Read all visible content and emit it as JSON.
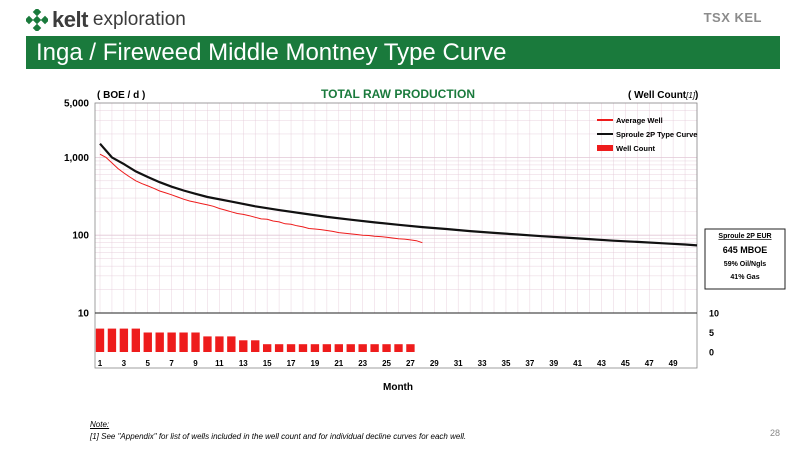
{
  "header": {
    "brand": "kelt",
    "brand_suffix": "exploration",
    "exchange_ticker": "TSX KEL",
    "title": "Inga / Fireweed Middle Montney Type Curve"
  },
  "colors": {
    "banner": "#1a7a3c",
    "average_well": "#ee1c1c",
    "type_curve": "#111111",
    "well_count": "#ee1c1c",
    "grid": "#e2c7d6"
  },
  "chart_data": {
    "type": "line",
    "title": "TOTAL RAW PRODUCTION",
    "ylabel_left": "( BOE / d )",
    "ylabel_right": "( Well Count",
    "ylabel_right_note": "[1]",
    "ylabel_right_close": ")",
    "xlabel": "Month",
    "y_scale": "log",
    "ylim": [
      10,
      5000
    ],
    "y_ticks": [
      "5,000",
      "1,000",
      "100",
      "10"
    ],
    "y_tick_values": [
      5000,
      1000,
      100,
      10
    ],
    "xlim": [
      1,
      51
    ],
    "x_ticks": [
      1,
      3,
      5,
      7,
      9,
      11,
      13,
      15,
      17,
      19,
      21,
      23,
      25,
      27,
      29,
      31,
      33,
      35,
      37,
      39,
      41,
      43,
      45,
      47,
      49
    ],
    "y2_ticks": [
      10,
      5,
      0
    ],
    "y2lim": [
      0,
      10
    ],
    "grid": true,
    "legend_position": "top-right",
    "legend": [
      {
        "label": "Average Well",
        "kind": "line",
        "color": "#ee1c1c"
      },
      {
        "label": "Sproule 2P Type Curve",
        "kind": "line",
        "color": "#111111"
      },
      {
        "label": "Well Count",
        "kind": "bar",
        "color": "#ee1c1c"
      }
    ],
    "series": [
      {
        "name": "Average Well",
        "x": [
          1,
          1.5,
          2,
          2.5,
          3,
          3.5,
          4,
          4.5,
          5,
          5.5,
          6,
          6.5,
          7,
          7.5,
          8,
          8.5,
          9,
          9.5,
          10,
          10.5,
          11,
          11.5,
          12,
          12.5,
          13,
          13.5,
          14,
          14.5,
          15,
          15.5,
          16,
          16.5,
          17,
          17.5,
          18,
          18.5,
          19,
          19.5,
          20,
          20.5,
          21,
          21.5,
          22,
          22.5,
          23,
          23.5,
          24,
          24.5,
          25,
          25.5,
          26,
          26.5,
          27,
          27.5,
          28
        ],
        "values": [
          1100,
          1000,
          850,
          720,
          630,
          560,
          500,
          460,
          430,
          400,
          370,
          350,
          330,
          310,
          290,
          275,
          265,
          255,
          245,
          235,
          220,
          210,
          200,
          190,
          185,
          178,
          170,
          162,
          160,
          152,
          148,
          140,
          138,
          132,
          128,
          122,
          120,
          118,
          115,
          112,
          108,
          106,
          104,
          102,
          100,
          99,
          97,
          96,
          94,
          92,
          90,
          89,
          87,
          85,
          80
        ]
      },
      {
        "name": "Sproule 2P Type Curve",
        "x": [
          1,
          2,
          3,
          4,
          5,
          6,
          7,
          8,
          9,
          10,
          12,
          14,
          16,
          18,
          20,
          22,
          24,
          26,
          28,
          30,
          32,
          34,
          36,
          38,
          40,
          42,
          44,
          46,
          48,
          50,
          51
        ],
        "values": [
          1500,
          1000,
          820,
          660,
          560,
          480,
          420,
          375,
          340,
          310,
          270,
          235,
          210,
          190,
          172,
          158,
          146,
          136,
          127,
          120,
          113,
          107,
          102,
          97,
          93,
          89,
          85,
          82,
          79,
          76,
          74
        ]
      }
    ],
    "well_count": {
      "name": "Well Count",
      "x": [
        1,
        2,
        3,
        4,
        5,
        6,
        7,
        8,
        9,
        10,
        11,
        12,
        13,
        14,
        15,
        16,
        17,
        18,
        19,
        20,
        21,
        22,
        23,
        24,
        25,
        26,
        27
      ],
      "values": [
        6,
        6,
        6,
        6,
        5,
        5,
        5,
        5,
        5,
        4,
        4,
        4,
        3,
        3,
        2,
        2,
        2,
        2,
        2,
        2,
        2,
        2,
        2,
        2,
        2,
        2,
        2
      ]
    },
    "eur_box": {
      "title": "Sproule 2P EUR",
      "value": "645 MBOE",
      "line2": "59% Oil/Ngls",
      "line3": "41% Gas"
    }
  },
  "footnote": {
    "label": "Note:",
    "text": "[1] See \"Appendix\" for list of wells included in the well count and for individual decline curves for each well."
  },
  "page_number": "28"
}
